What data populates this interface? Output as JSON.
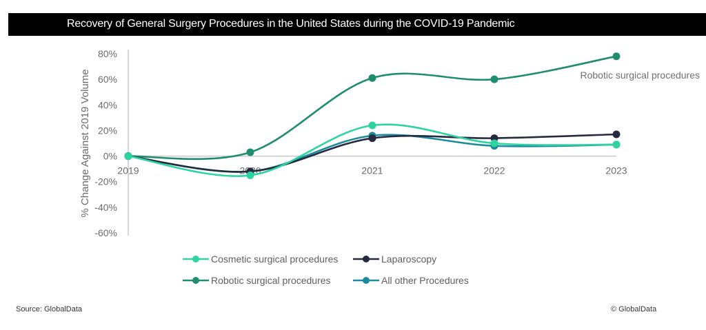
{
  "title": "Recovery of General Surgery Procedures in the United States during the COVID-19 Pandemic",
  "footer": {
    "source": "Source: GlobalData",
    "copyright": "© GlobalData"
  },
  "chart_data": {
    "type": "line",
    "title": "Recovery of General Surgery Procedures in the United States during the COVID-19 Pandemic",
    "xlabel": "",
    "ylabel": "% Change Against 2019 Volume",
    "categories": [
      "2019",
      "2020",
      "2021",
      "2022",
      "2023"
    ],
    "ylim": [
      -60,
      80
    ],
    "yticks": [
      80,
      60,
      40,
      20,
      0,
      -20,
      -40,
      -60
    ],
    "ytick_labels": [
      "80%",
      "60%",
      "40%",
      "20%",
      "0%",
      "-20%",
      "-40%",
      "-60%"
    ],
    "grid": false,
    "smooth": true,
    "legend_position": "bottom",
    "annotation": "Robotic surgical procedures",
    "series": [
      {
        "name": "Cosmetic surgical procedures",
        "color": "#2ed3a2",
        "values": [
          0,
          -15,
          24,
          10,
          9
        ]
      },
      {
        "name": "Laparoscopy",
        "color": "#262a40",
        "values": [
          0,
          -12,
          14,
          14,
          17
        ]
      },
      {
        "name": "Robotic surgical procedures",
        "color": "#1f8c70",
        "values": [
          0,
          3,
          61,
          60,
          78
        ]
      },
      {
        "name": "All other Procedures",
        "color": "#1a8a9c",
        "values": [
          0,
          -12,
          16,
          8,
          9
        ]
      }
    ]
  }
}
